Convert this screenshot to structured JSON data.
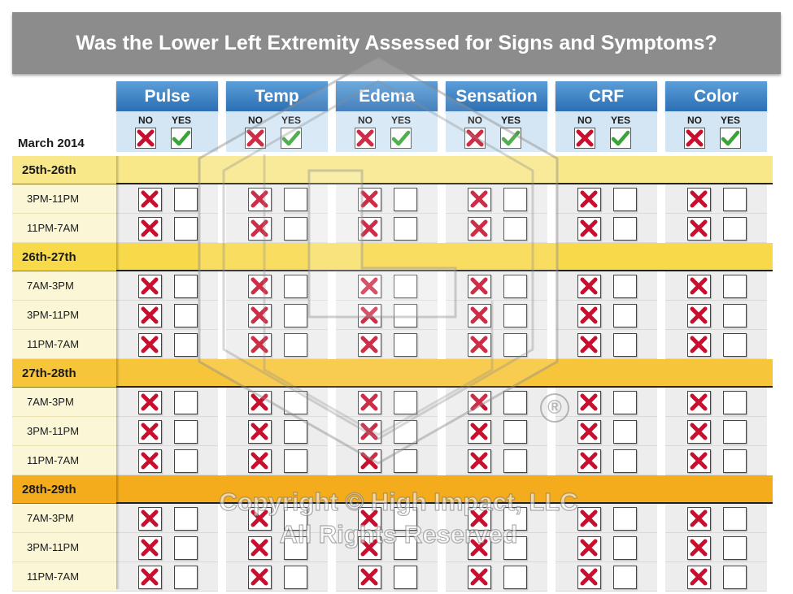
{
  "title": "Was the Lower Left Extremity Assessed for Signs and Symptoms?",
  "month_label": "March 2014",
  "colors": {
    "title_bg": "#8c8c8c",
    "header_blue": "#3a7fc4",
    "subheader": "#d4e6f4",
    "x_mark": "#c8102e",
    "check_mark": "#3aa43a",
    "group_colors": [
      "#f8e88a",
      "#f8d94a",
      "#f7c53a",
      "#f4ac1c"
    ],
    "row_bg": "#ededed"
  },
  "legend": {
    "no_label": "NO",
    "yes_label": "YES"
  },
  "watermark": {
    "line1": "Copyright © High Impact, LLC",
    "line2": "All Rights Reserved",
    "registered": "®"
  },
  "chart_data": {
    "type": "table",
    "title": "Was the Lower Left Extremity Assessed for Signs and Symptoms?",
    "month": "March 2014",
    "columns": [
      "Pulse",
      "Temp",
      "Edema",
      "Sensation",
      "CRF",
      "Color"
    ],
    "answer_options": [
      "NO",
      "YES"
    ],
    "groups": [
      {
        "label": "25th-26th",
        "shifts": [
          {
            "label": "3PM-11PM",
            "values": [
              "NO",
              "NO",
              "NO",
              "NO",
              "NO",
              "NO"
            ]
          },
          {
            "label": "11PM-7AM",
            "values": [
              "NO",
              "NO",
              "NO",
              "NO",
              "NO",
              "NO"
            ]
          }
        ]
      },
      {
        "label": "26th-27th",
        "shifts": [
          {
            "label": "7AM-3PM",
            "values": [
              "NO",
              "NO",
              "NO",
              "NO",
              "NO",
              "NO"
            ]
          },
          {
            "label": "3PM-11PM",
            "values": [
              "NO",
              "NO",
              "NO",
              "NO",
              "NO",
              "NO"
            ]
          },
          {
            "label": "11PM-7AM",
            "values": [
              "NO",
              "NO",
              "NO",
              "NO",
              "NO",
              "NO"
            ]
          }
        ]
      },
      {
        "label": "27th-28th",
        "shifts": [
          {
            "label": "7AM-3PM",
            "values": [
              "NO",
              "NO",
              "NO",
              "NO",
              "NO",
              "NO"
            ]
          },
          {
            "label": "3PM-11PM",
            "values": [
              "NO",
              "NO",
              "NO",
              "NO",
              "NO",
              "NO"
            ]
          },
          {
            "label": "11PM-7AM",
            "values": [
              "NO",
              "NO",
              "NO",
              "NO",
              "NO",
              "NO"
            ]
          }
        ]
      },
      {
        "label": "28th-29th",
        "shifts": [
          {
            "label": "7AM-3PM",
            "values": [
              "NO",
              "NO",
              "NO",
              "NO",
              "NO",
              "NO"
            ]
          },
          {
            "label": "3PM-11PM",
            "values": [
              "NO",
              "NO",
              "NO",
              "NO",
              "NO",
              "NO"
            ]
          },
          {
            "label": "11PM-7AM",
            "values": [
              "NO",
              "NO",
              "NO",
              "NO",
              "NO",
              "NO"
            ]
          }
        ]
      }
    ]
  }
}
